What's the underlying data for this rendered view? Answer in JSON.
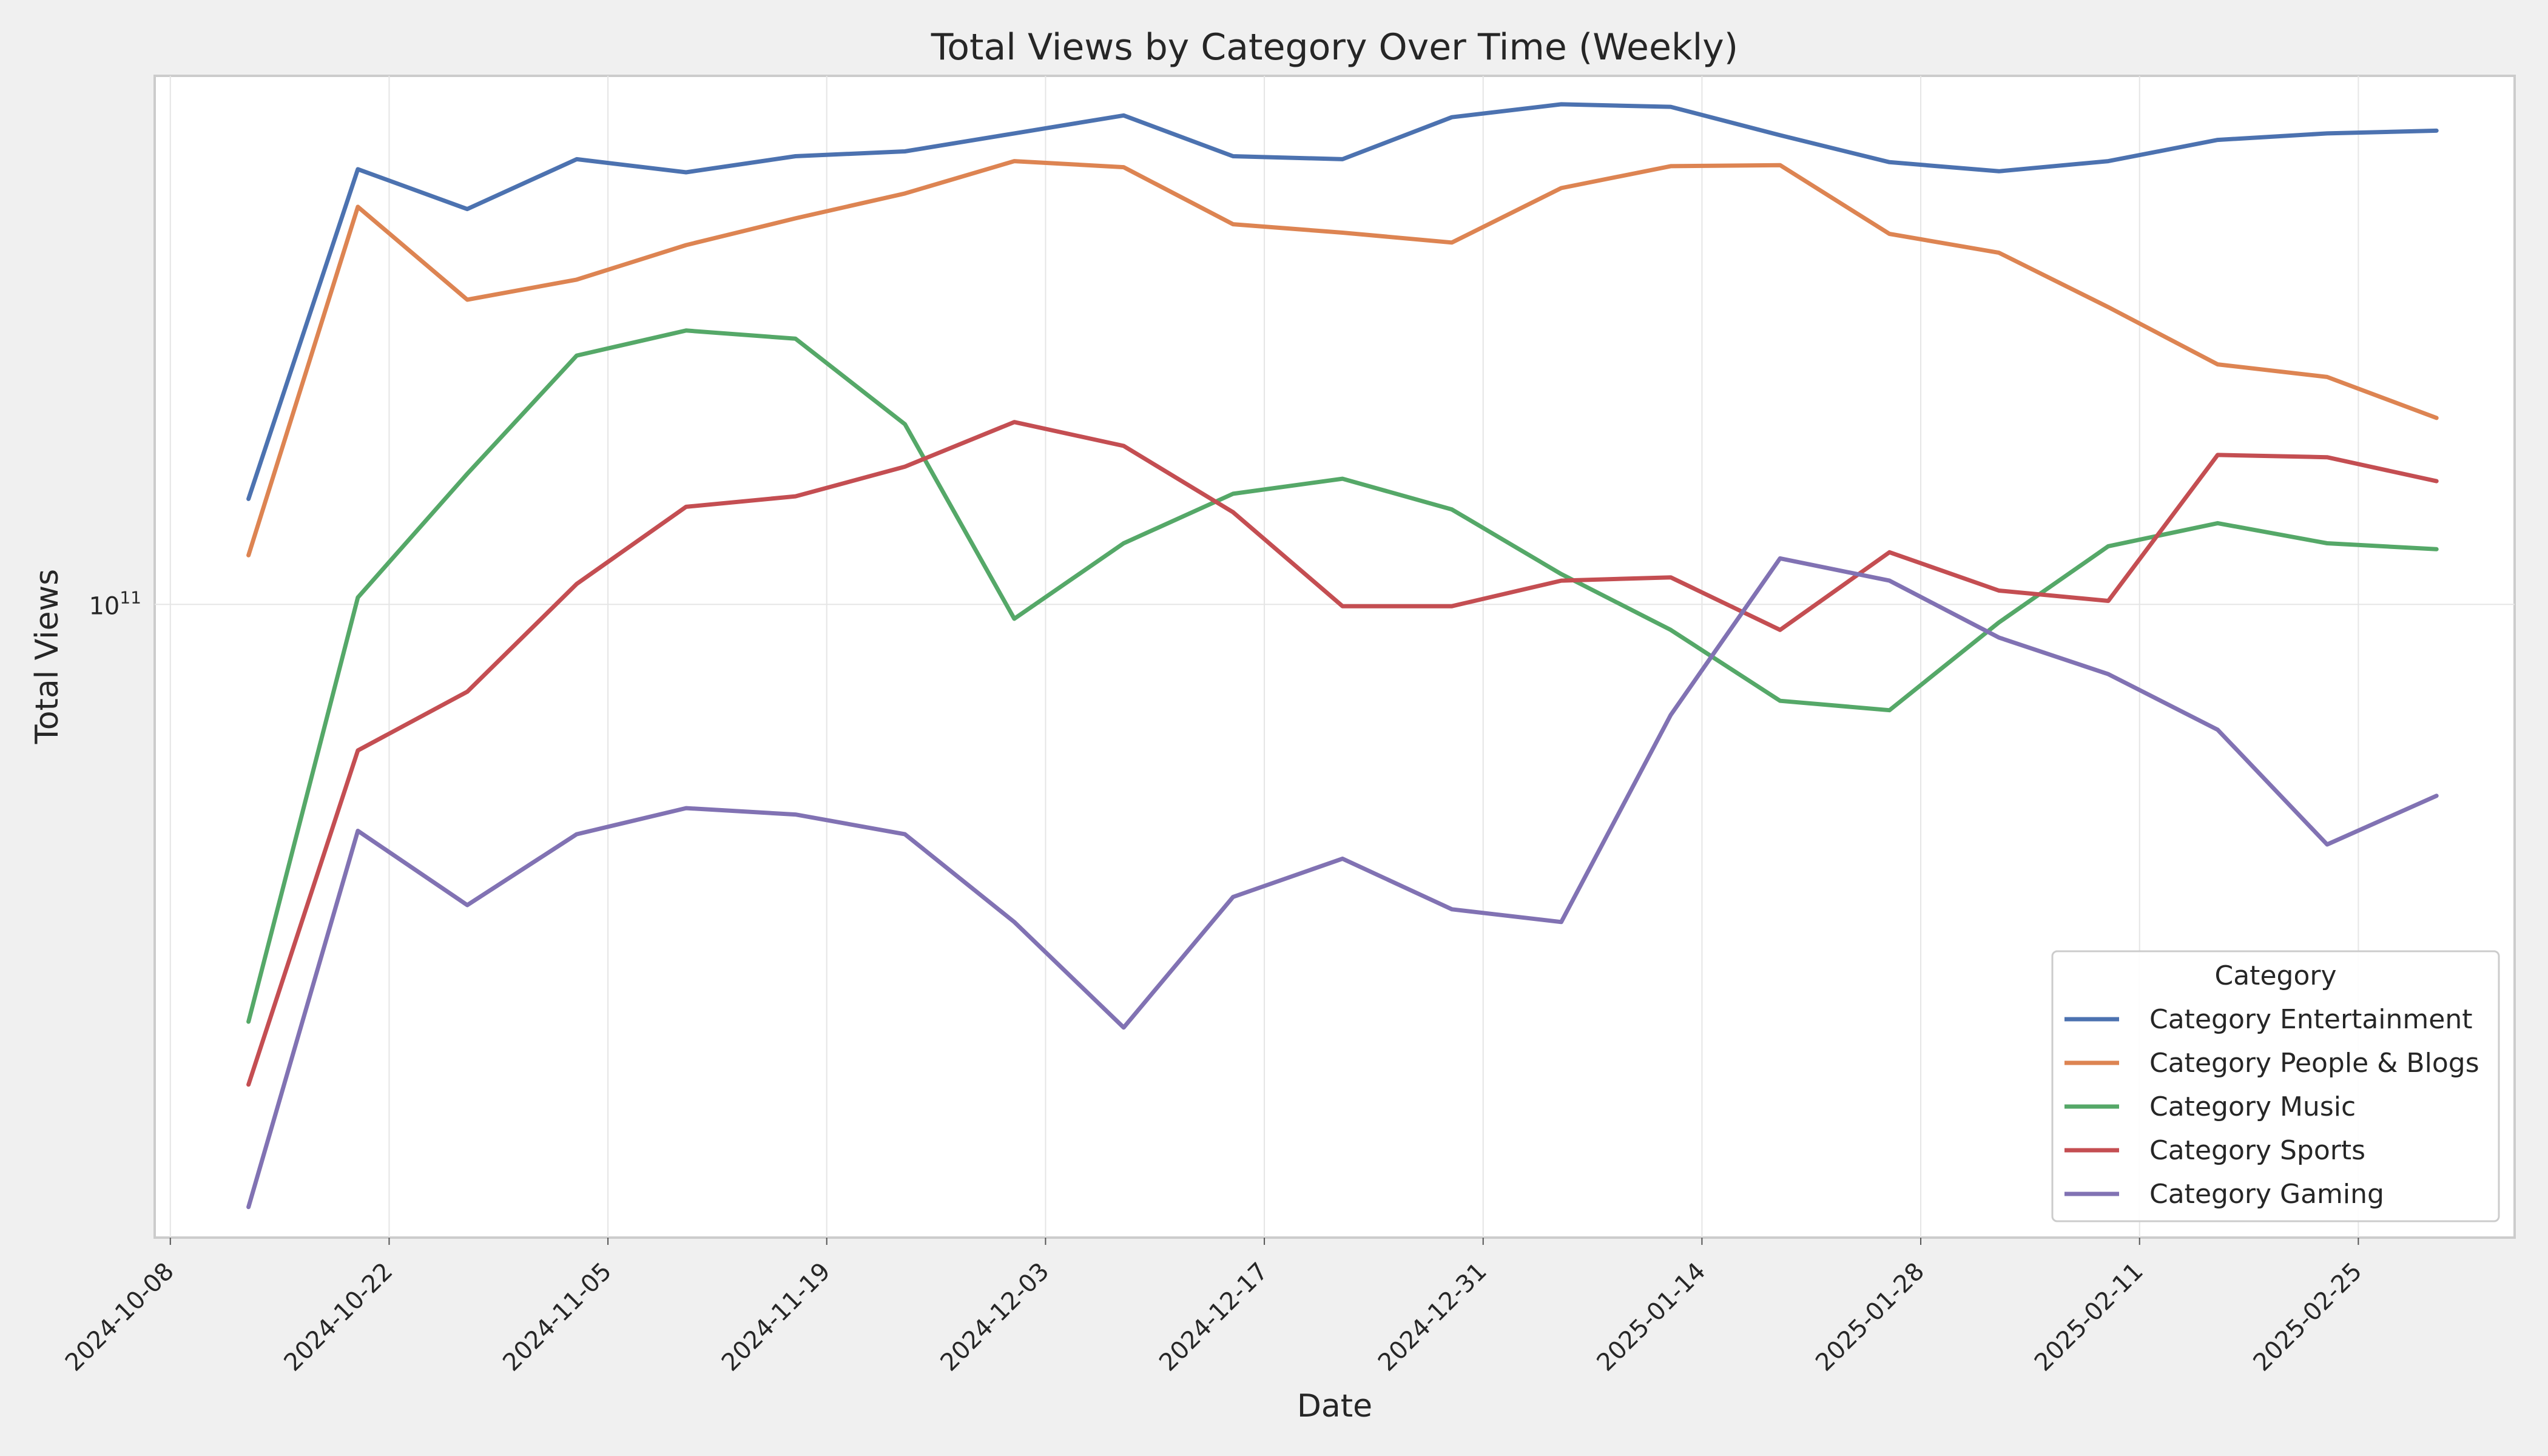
{
  "chart_data": {
    "type": "line",
    "title": "Total Views by Category Over Time (Weekly)",
    "xlabel": "Date",
    "ylabel": "Total Views",
    "yscale": "log",
    "ylim": [
      16500000000,
      450000000000
    ],
    "yticks": [
      {
        "value": 100000000000,
        "base": "10",
        "exp": "11"
      }
    ],
    "xlim": [
      "2024-10-07",
      "2025-03-07"
    ],
    "xticks": [
      "2024-10-08",
      "2024-10-22",
      "2024-11-05",
      "2024-11-19",
      "2024-12-03",
      "2024-12-17",
      "2024-12-31",
      "2025-01-14",
      "2025-01-28",
      "2025-02-11",
      "2025-02-25"
    ],
    "x": [
      "2024-10-13",
      "2024-10-20",
      "2024-10-27",
      "2024-11-03",
      "2024-11-10",
      "2024-11-17",
      "2024-11-24",
      "2024-12-01",
      "2024-12-08",
      "2024-12-15",
      "2024-12-22",
      "2024-12-29",
      "2025-01-05",
      "2025-01-12",
      "2025-01-19",
      "2025-01-26",
      "2025-02-02",
      "2025-02-09",
      "2025-02-16",
      "2025-02-23",
      "2025-03-02"
    ],
    "grid": true,
    "legend": {
      "title": "Category",
      "position": "lower-right"
    },
    "series": [
      {
        "name": "Category Entertainment",
        "color": "#4c72b0",
        "values": [
          135000000000.0,
          345000000000.0,
          308000000000.0,
          355000000000.0,
          342000000000.0,
          358000000000.0,
          363000000000.0,
          382000000000.0,
          402000000000.0,
          358000000000.0,
          355000000000.0,
          400000000000.0,
          415000000000.0,
          412000000000.0,
          380000000000.0,
          352000000000.0,
          343000000000.0,
          353000000000.0,
          375000000000.0,
          382000000000.0,
          385000000000.0
        ]
      },
      {
        "name": "Category People & Blogs",
        "color": "#dd8452",
        "values": [
          115000000000.0,
          310000000000.0,
          238000000000.0,
          252000000000.0,
          278000000000.0,
          300000000000.0,
          322000000000.0,
          353000000000.0,
          347000000000.0,
          295000000000.0,
          288000000000.0,
          280000000000.0,
          327000000000.0,
          348000000000.0,
          349000000000.0,
          287000000000.0,
          272000000000.0,
          233000000000.0,
          198000000000.0,
          191000000000.0,
          170000000000.0
        ]
      },
      {
        "name": "Category Music",
        "color": "#55a868",
        "values": [
          30500000000.0,
          102000000000.0,
          145000000000.0,
          203000000000.0,
          218000000000.0,
          213000000000.0,
          167000000000.0,
          96000000000.0,
          119000000000.0,
          137000000000.0,
          143000000000.0,
          131000000000.0,
          109000000000.0,
          93000000000.0,
          76000000000.0,
          74000000000.0,
          95000000000.0,
          118000000000.0,
          126000000000.0,
          119000000000.0,
          117000000000.0
        ]
      },
      {
        "name": "Category Sports",
        "color": "#c44e52",
        "values": [
          25500000000.0,
          66000000000.0,
          78000000000.0,
          106000000000.0,
          132000000000.0,
          136000000000.0,
          148000000000.0,
          168000000000.0,
          157000000000.0,
          130000000000.0,
          99500000000.0,
          99500000000.0,
          107000000000.0,
          108000000000.0,
          93000000000.0,
          116000000000.0,
          104000000000.0,
          101000000000.0,
          153000000000.0,
          152000000000.0,
          142000000000.0
        ]
      },
      {
        "name": "Category Gaming",
        "color": "#8172b3",
        "values": [
          18000000000.0,
          52500000000.0,
          42500000000.0,
          52000000000.0,
          56000000000.0,
          55000000000.0,
          52000000000.0,
          40500000000.0,
          30000000000.0,
          43500000000.0,
          48500000000.0,
          42000000000.0,
          40500000000.0,
          73000000000.0,
          114000000000.0,
          107000000000.0,
          91000000000.0,
          82000000000.0,
          70000000000.0,
          50500000000.0,
          58000000000.0
        ]
      }
    ]
  }
}
